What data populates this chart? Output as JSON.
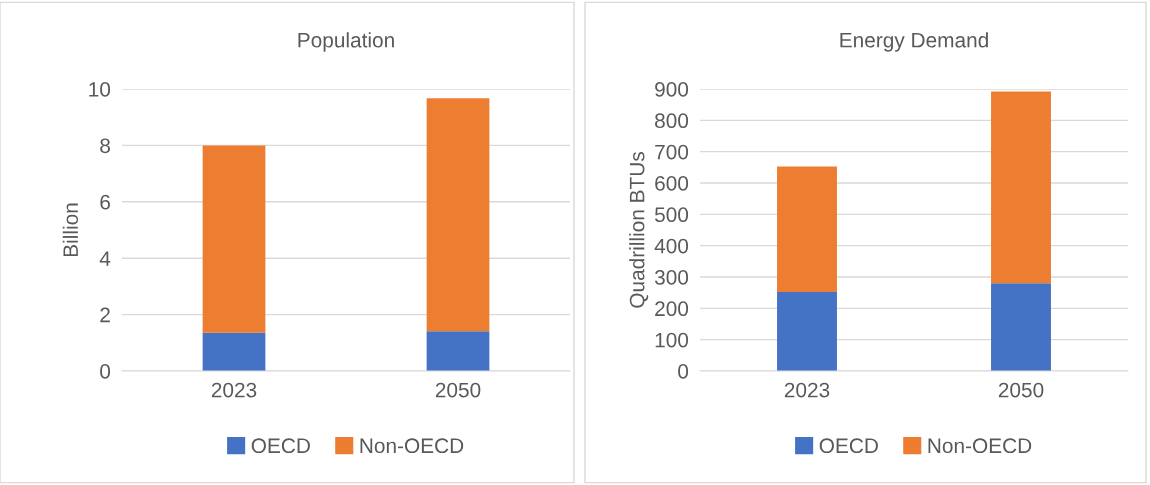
{
  "chart_data": [
    {
      "type": "bar",
      "title": "Population",
      "ylabel": "Billion",
      "categories": [
        "2023",
        "2050"
      ],
      "stacked": true,
      "series": [
        {
          "name": "OECD",
          "color": "#4472c4",
          "values": [
            1.36,
            1.41
          ]
        },
        {
          "name": "Non-OECD",
          "color": "#ed7d31",
          "values": [
            6.64,
            8.26
          ]
        }
      ],
      "ylim": [
        0,
        10
      ],
      "yticks": [
        0,
        2,
        4,
        6,
        8,
        10
      ],
      "grid": "y",
      "legend": "bottom"
    },
    {
      "type": "bar",
      "title": "Energy Demand",
      "ylabel": "Quadrillion BTUs",
      "categories": [
        "2023",
        "2050"
      ],
      "stacked": true,
      "series": [
        {
          "name": "OECD",
          "color": "#4472c4",
          "values": [
            252,
            280
          ]
        },
        {
          "name": "Non-OECD",
          "color": "#ed7d31",
          "values": [
            401,
            612
          ]
        }
      ],
      "ylim": [
        0,
        900
      ],
      "yticks": [
        0,
        100,
        200,
        300,
        400,
        500,
        600,
        700,
        800,
        900
      ],
      "grid": "y",
      "legend": "bottom"
    }
  ]
}
